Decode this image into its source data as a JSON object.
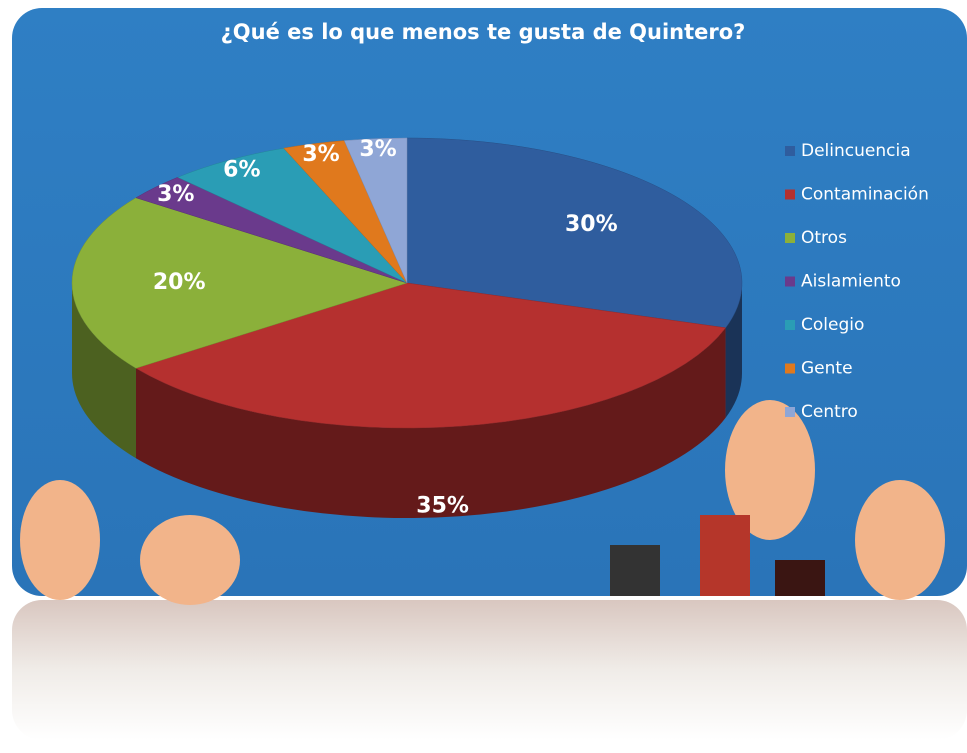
{
  "chart_data": {
    "type": "pie",
    "title": "¿Qué es lo que menos te gusta de Quintero?",
    "categories": [
      "Delincuencia",
      "Contaminación",
      "Otros",
      "Aislamiento",
      "Colegio",
      "Gente",
      "Centro"
    ],
    "values": [
      30,
      35,
      20,
      3,
      6,
      3,
      3
    ],
    "value_labels": [
      "30%",
      "35%",
      "20%",
      "3%",
      "6%",
      "3%",
      "3%"
    ],
    "colors": [
      "#2f5d9e",
      "#b5302f",
      "#8bb03a",
      "#6a3a8c",
      "#2a9db5",
      "#e0791d",
      "#8fa6d6"
    ],
    "legend": "right"
  }
}
